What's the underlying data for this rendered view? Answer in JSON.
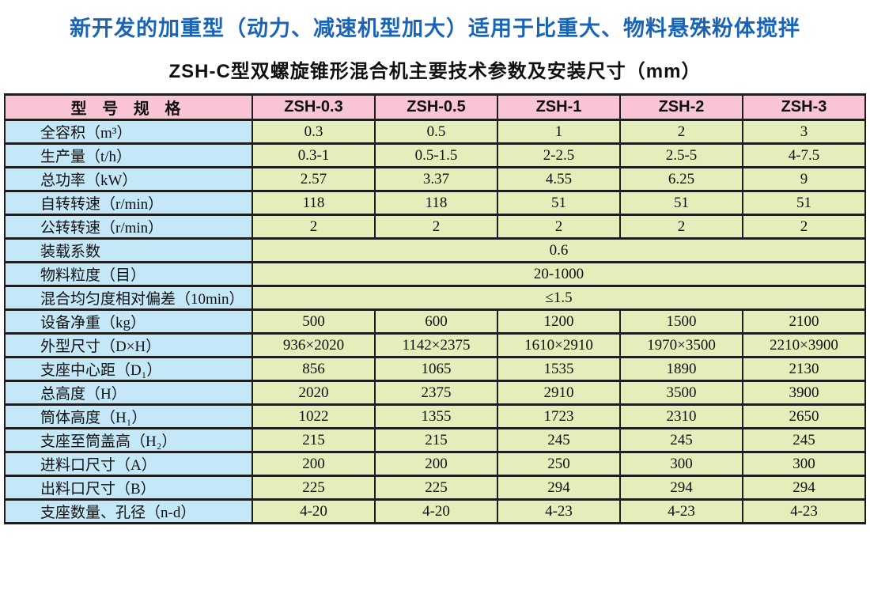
{
  "page": {
    "title": "新开发的加重型（动力、减速机型加大）适用于比重大、物料悬殊粉体搅拌",
    "subtitle": "ZSH-C型双螺旋锥形混合机主要技术参数及安装尺寸（mm）"
  },
  "colors": {
    "title_blue": "#1a64b8",
    "header_pink": "#f9c5d4",
    "label_blue": "#c4e8f8",
    "value_green": "#e3eebb",
    "border": "#1e1e1e"
  },
  "table": {
    "header": [
      "型 号 规 格",
      "ZSH-0.3",
      "ZSH-0.5",
      "ZSH-1",
      "ZSH-2",
      "ZSH-3"
    ],
    "rows": [
      {
        "label": "全容积（m³）",
        "values": [
          "0.3",
          "0.5",
          "1",
          "2",
          "3"
        ]
      },
      {
        "label": "生产量（t/h）",
        "values": [
          "0.3-1",
          "0.5-1.5",
          "2-2.5",
          "2.5-5",
          "4-7.5"
        ]
      },
      {
        "label": "总功率（kW）",
        "values": [
          "2.57",
          "3.37",
          "4.55",
          "6.25",
          "9"
        ]
      },
      {
        "label": "自转转速（r/min）",
        "values": [
          "118",
          "118",
          "51",
          "51",
          "51"
        ]
      },
      {
        "label": "公转转速（r/min）",
        "values": [
          "2",
          "2",
          "2",
          "2",
          "2"
        ]
      },
      {
        "label": "装载系数",
        "span_value": "0.6"
      },
      {
        "label": "物料粒度（目）",
        "span_value": "20-1000"
      },
      {
        "label": "混合均匀度相对偏差（10min）",
        "span_value": "≤1.5"
      },
      {
        "label": "设备净重（kg）",
        "values": [
          "500",
          "600",
          "1200",
          "1500",
          "2100"
        ]
      },
      {
        "label": "外型尺寸（D×H）",
        "values": [
          "936×2020",
          "1142×2375",
          "1610×2910",
          "1970×3500",
          "2210×3900"
        ]
      },
      {
        "label": "支座中心距（D₁）",
        "values": [
          "856",
          "1065",
          "1535",
          "1890",
          "2130"
        ]
      },
      {
        "label": "总高度（H）",
        "values": [
          "2020",
          "2375",
          "2910",
          "3500",
          "3900"
        ]
      },
      {
        "label": "筒体高度（H₁）",
        "values": [
          "1022",
          "1355",
          "1723",
          "2310",
          "2650"
        ]
      },
      {
        "label": "支座至筒盖高（H₂）",
        "values": [
          "215",
          "215",
          "245",
          "245",
          "245"
        ]
      },
      {
        "label": "进料口尺寸（A）",
        "values": [
          "200",
          "200",
          "250",
          "300",
          "300"
        ]
      },
      {
        "label": "出料口尺寸（B）",
        "values": [
          "225",
          "225",
          "294",
          "294",
          "294"
        ]
      },
      {
        "label": "支座数量、孔径（n-d）",
        "values": [
          "4-20",
          "4-20",
          "4-23",
          "4-23",
          "4-23"
        ]
      }
    ]
  }
}
